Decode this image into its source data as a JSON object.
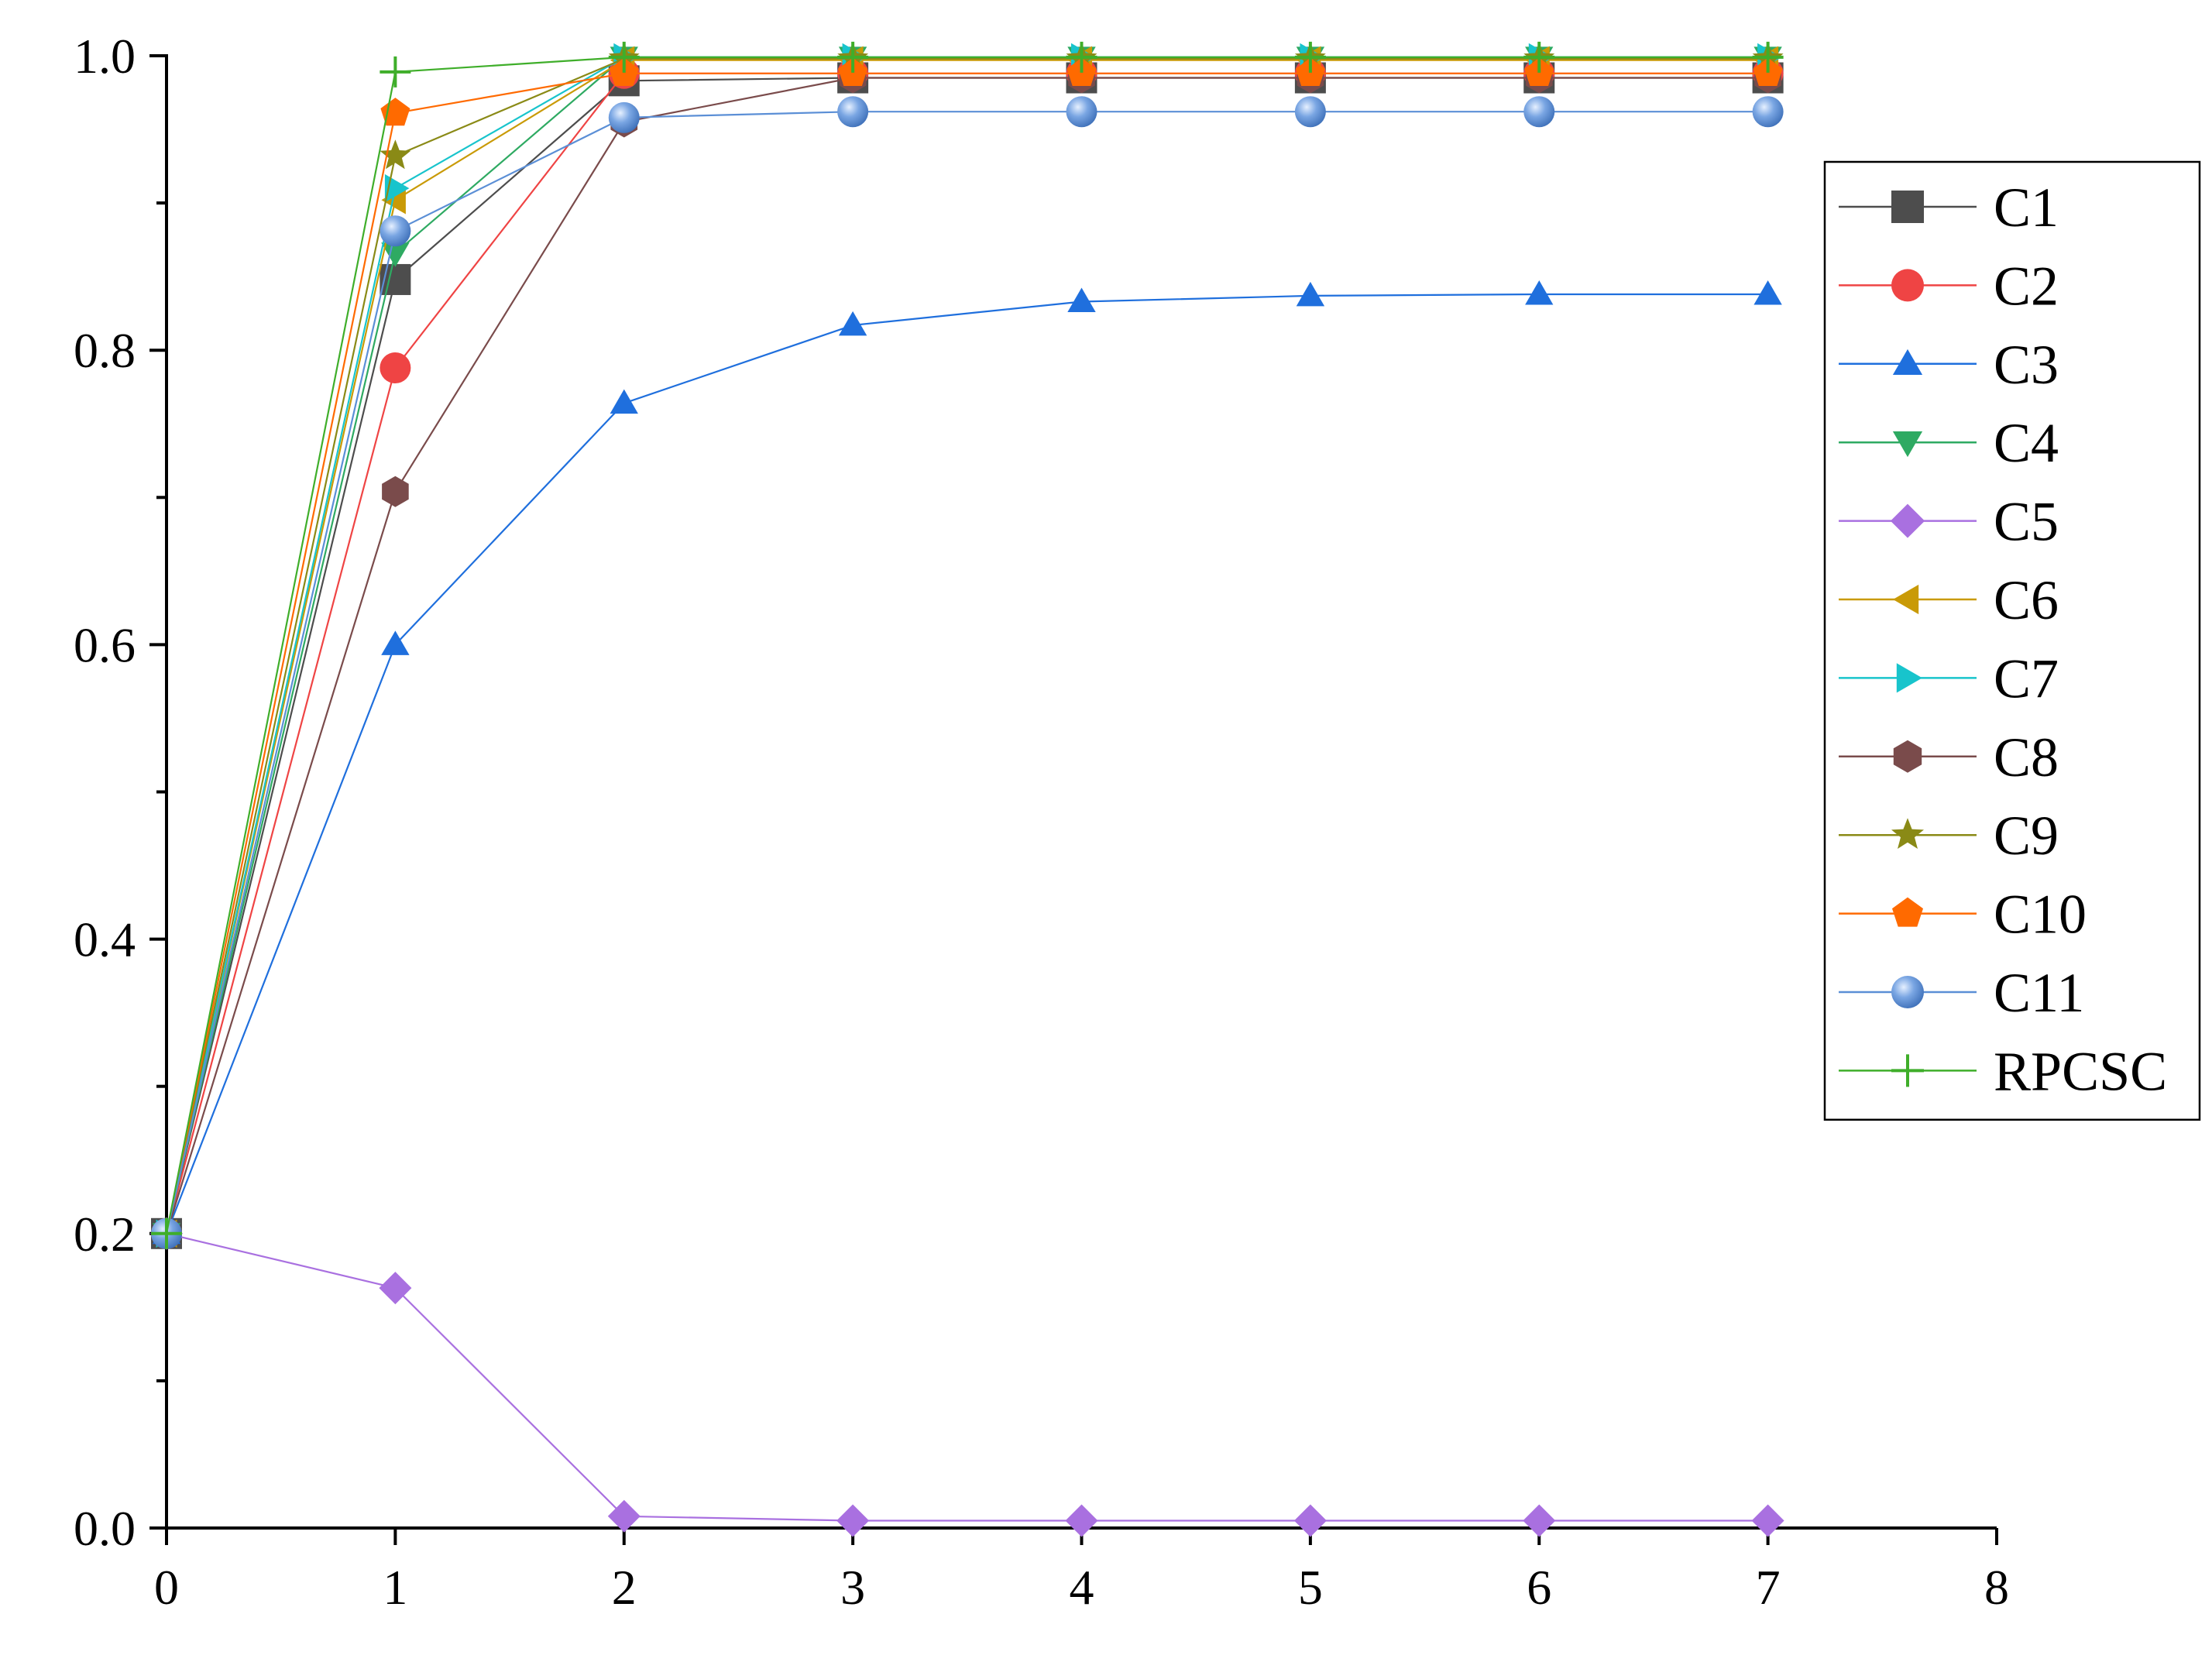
{
  "chart_data": {
    "type": "line",
    "title": "",
    "xlabel": "",
    "ylabel": "",
    "xlim": [
      0,
      8
    ],
    "ylim": [
      0,
      1
    ],
    "xticks": [
      "0",
      "1",
      "2",
      "3",
      "4",
      "5",
      "6",
      "7",
      "8"
    ],
    "yticks": [
      "0.0",
      "0.2",
      "0.4",
      "0.6",
      "0.8",
      "1.0"
    ],
    "grid": false,
    "legend_position": "right",
    "x": [
      0,
      1,
      2,
      3,
      4,
      5,
      6,
      7
    ],
    "series": [
      {
        "name": "C1",
        "color": "#4d4d4d",
        "marker": "square",
        "values": [
          0.2,
          0.848,
          0.983,
          0.985,
          0.985,
          0.985,
          0.985,
          0.985
        ]
      },
      {
        "name": "C2",
        "color": "#ef4444",
        "marker": "circle",
        "values": [
          0.2,
          0.788,
          0.988,
          0.988,
          0.988,
          0.988,
          0.988,
          0.988
        ]
      },
      {
        "name": "C3",
        "color": "#1f6fdd",
        "marker": "triangle-up",
        "values": [
          0.2,
          0.6,
          0.764,
          0.817,
          0.833,
          0.837,
          0.838,
          0.838
        ]
      },
      {
        "name": "C4",
        "color": "#2eaa62",
        "marker": "triangle-down",
        "values": [
          0.2,
          0.866,
          0.999,
          0.999,
          0.999,
          0.999,
          0.999,
          0.999
        ]
      },
      {
        "name": "C5",
        "color": "#a970e0",
        "marker": "diamond",
        "values": [
          0.2,
          0.163,
          0.008,
          0.005,
          0.005,
          0.005,
          0.005,
          0.005
        ]
      },
      {
        "name": "C6",
        "color": "#c99a06",
        "marker": "triangle-left",
        "values": [
          0.2,
          0.902,
          0.997,
          0.997,
          0.997,
          0.997,
          0.997,
          0.997
        ]
      },
      {
        "name": "C7",
        "color": "#18c4cc",
        "marker": "triangle-right",
        "values": [
          0.2,
          0.91,
          0.999,
          0.999,
          0.999,
          0.999,
          0.999,
          0.999
        ]
      },
      {
        "name": "C8",
        "color": "#7a4b4b",
        "marker": "hexagon",
        "values": [
          0.2,
          0.704,
          0.955,
          0.985,
          0.985,
          0.985,
          0.985,
          0.985
        ]
      },
      {
        "name": "C9",
        "color": "#8a8a16",
        "marker": "star",
        "values": [
          0.2,
          0.932,
          0.998,
          0.998,
          0.998,
          0.998,
          0.998,
          0.998
        ]
      },
      {
        "name": "C10",
        "color": "#ff6a00",
        "marker": "pentagon",
        "values": [
          0.2,
          0.961,
          0.988,
          0.988,
          0.988,
          0.988,
          0.988,
          0.988
        ]
      },
      {
        "name": "C11",
        "color": "#5b8fd6",
        "marker": "sphere",
        "values": [
          0.2,
          0.881,
          0.958,
          0.962,
          0.962,
          0.962,
          0.962,
          0.962
        ]
      },
      {
        "name": "RPCSC",
        "color": "#3fae2a",
        "marker": "plus",
        "values": [
          0.2,
          0.989,
          0.999,
          0.999,
          0.999,
          0.999,
          0.999,
          0.999
        ]
      }
    ]
  }
}
